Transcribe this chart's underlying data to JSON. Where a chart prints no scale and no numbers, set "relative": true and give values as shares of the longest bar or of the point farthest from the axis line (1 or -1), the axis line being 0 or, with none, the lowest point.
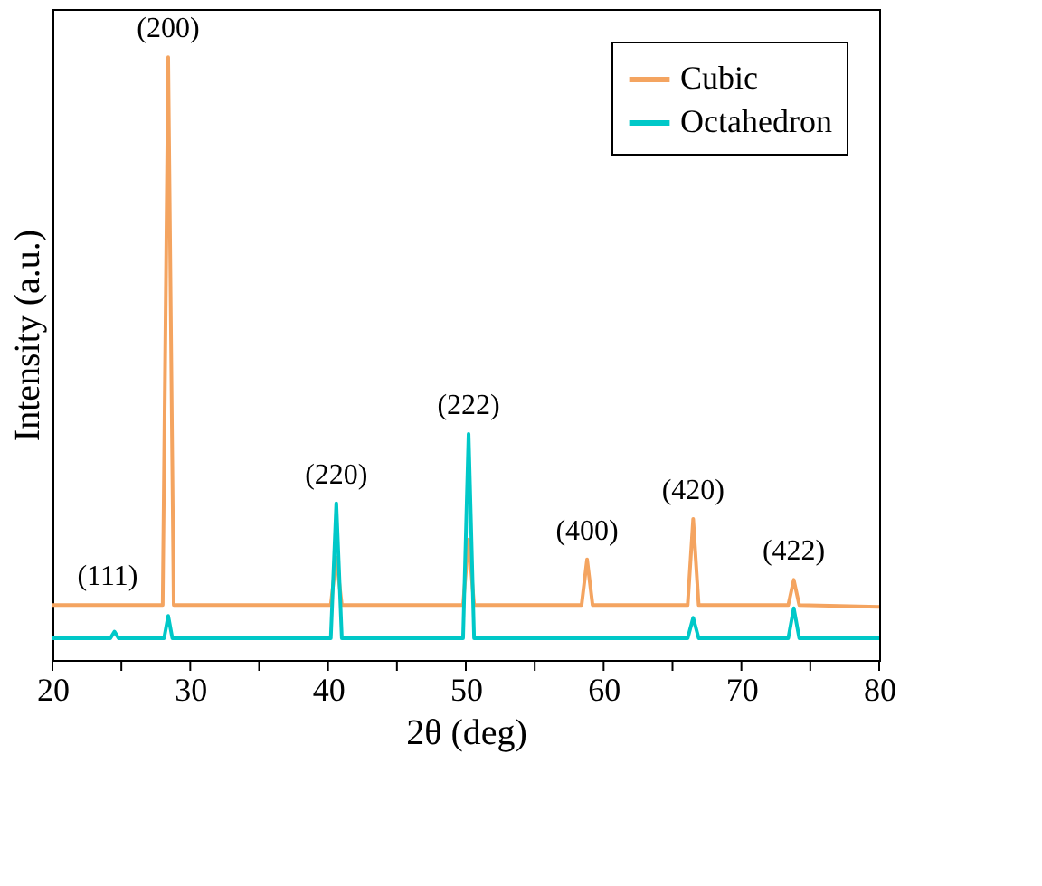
{
  "chart_data": {
    "type": "line",
    "relative": true,
    "xlabel": "2θ (deg)",
    "ylabel": "Intensity (a.u.)",
    "xlim": [
      20,
      80
    ],
    "xticks": [
      20,
      {
        "value": 25,
        "label": null
      },
      30,
      {
        "value": 35,
        "label": null
      },
      40,
      {
        "value": 45,
        "label": null
      },
      50,
      {
        "value": 55,
        "label": null
      },
      60,
      {
        "value": 65,
        "label": null
      },
      70,
      {
        "value": 75,
        "label": null
      },
      80
    ],
    "legend": "top right",
    "grid": false,
    "line_style": "solid",
    "marker": "none",
    "series": [
      {
        "name": "Cubic",
        "color": "#f4a460",
        "x": [
          20,
          28.0,
          28.4,
          28.8,
          40.2,
          40.6,
          41.0,
          49.8,
          50.2,
          50.6,
          58.4,
          58.8,
          59.2,
          66.1,
          66.5,
          66.9,
          73.4,
          73.8,
          74.2,
          80
        ],
        "values": [
          0.091,
          0.091,
          1.0,
          0.091,
          0.091,
          0.17,
          0.091,
          0.091,
          0.2,
          0.091,
          0.091,
          0.167,
          0.091,
          0.091,
          0.234,
          0.091,
          0.091,
          0.133,
          0.091,
          0.088
        ]
      },
      {
        "name": "Octahedron",
        "color": "#00c8c8",
        "x": [
          20,
          24.2,
          24.5,
          24.8,
          28.1,
          28.4,
          28.7,
          40.2,
          40.6,
          41.0,
          49.8,
          50.2,
          50.6,
          66.1,
          66.5,
          66.9,
          73.4,
          73.8,
          74.2,
          80
        ],
        "values": [
          0.036,
          0.036,
          0.047,
          0.036,
          0.036,
          0.073,
          0.036,
          0.036,
          0.26,
          0.036,
          0.036,
          0.375,
          0.036,
          0.036,
          0.07,
          0.036,
          0.036,
          0.086,
          0.036,
          0.036
        ]
      }
    ],
    "annotations": [
      {
        "text": "(111)",
        "x": 24,
        "y": 0.091
      },
      {
        "text": "(200)",
        "x": 28.4,
        "y": 1.0
      },
      {
        "text": "(220)",
        "x": 40.6,
        "y": 0.26
      },
      {
        "text": "(222)",
        "x": 50.2,
        "y": 0.375
      },
      {
        "text": "(400)",
        "x": 58.8,
        "y": 0.167
      },
      {
        "text": "(420)",
        "x": 66.5,
        "y": 0.234
      },
      {
        "text": "(422)",
        "x": 73.8,
        "y": 0.133
      }
    ]
  }
}
